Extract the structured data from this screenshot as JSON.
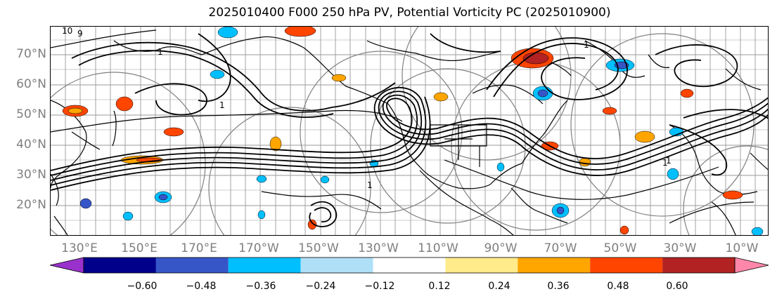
{
  "title": "2025010400 F000 250 hPa PV, Potential Vorticity PC (2025010900)",
  "lat_labels": [
    "70°N",
    "60°N",
    "50°N",
    "40°N",
    "30°N",
    "20°N"
  ],
  "lon_labels": [
    "130°E",
    "150°E",
    "170°E",
    "170°W",
    "150°W",
    "130°W",
    "110°W",
    "90°W",
    "70°W",
    "50°W",
    "30°W",
    "10°W"
  ],
  "contour_labels": [
    "10",
    "9",
    "1",
    "1",
    "1",
    "1",
    "1",
    "1"
  ],
  "colorbar": {
    "tick_labels": [
      "−0.60",
      "−0.48",
      "−0.36",
      "−0.24",
      "−0.12",
      "0.12",
      "0.24",
      "0.36",
      "0.48",
      "0.60"
    ],
    "colors": [
      "#9932cc",
      "#00008b",
      "#3656c8",
      "#00bfff",
      "#b0e0f8",
      "#ffffff",
      "#ffeb8a",
      "#ffa500",
      "#ff4500",
      "#b22222",
      "#ff88aa"
    ]
  },
  "colors": {
    "contour": "#000000",
    "graticule": "#808080",
    "coast": "#000000"
  }
}
